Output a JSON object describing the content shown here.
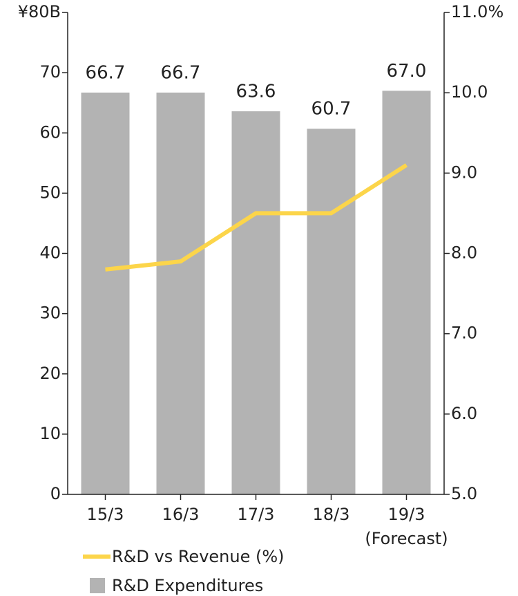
{
  "chart_data": {
    "type": "bar",
    "categories": [
      "15/3",
      "16/3",
      "17/3",
      "18/3",
      "19/3"
    ],
    "annotations": [
      {
        "text": "(Forecast)"
      }
    ],
    "series": [
      {
        "name": "R&D Expenditures",
        "type": "bar",
        "color": "#b3b3b3",
        "values": [
          66.7,
          66.7,
          63.6,
          60.7,
          67.0
        ],
        "value_labels": [
          "66.7",
          "66.7",
          "63.6",
          "60.7",
          "67.0"
        ]
      },
      {
        "name": "R&D vs Revenue (%)",
        "type": "line",
        "axis": "y2",
        "color": "#fcd54a",
        "values": [
          7.8,
          7.9,
          8.5,
          8.5,
          9.1
        ]
      }
    ],
    "ylim": [
      0,
      80
    ],
    "yticks": [
      0,
      10,
      20,
      30,
      40,
      50,
      60,
      70,
      {
        "value": 80,
        "label": "¥80B"
      }
    ],
    "y2lim": [
      5,
      11
    ],
    "y2ticks": [
      {
        "value": 5,
        "label": "5.0"
      },
      {
        "value": 6,
        "label": "6.0"
      },
      {
        "value": 7,
        "label": "7.0"
      },
      {
        "value": 8,
        "label": "8.0"
      },
      {
        "value": 9,
        "label": "9.0"
      },
      {
        "value": 10,
        "label": "10.0"
      },
      {
        "value": 11,
        "label": "11.0%"
      }
    ]
  }
}
